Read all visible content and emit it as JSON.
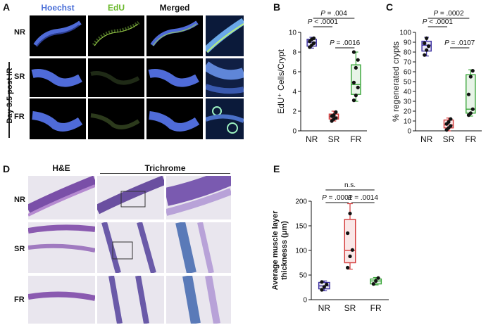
{
  "panelA": {
    "letter": "A",
    "columns": [
      {
        "label": "Hoechst",
        "color": "#4a6fd8"
      },
      {
        "label": "EdU",
        "color": "#6ab82a"
      },
      {
        "label": "Merged",
        "color": "#111111"
      }
    ],
    "rows": [
      "NR",
      "SR",
      "FR"
    ],
    "side_label": "Day 3.5 post IR"
  },
  "panelB": {
    "letter": "B",
    "chart_data": {
      "type": "box",
      "categories": [
        "NR",
        "SR",
        "FR"
      ],
      "ylabel": "EdU⁺ Cells/Crypt",
      "ylim": [
        0,
        10
      ],
      "yticks": [
        0,
        2,
        4,
        6,
        8,
        10
      ],
      "colors": [
        "#3b2fa0",
        "#d43b3b",
        "#3aa63a"
      ],
      "boxes": [
        {
          "min": 8.4,
          "q1": 8.6,
          "median": 9.0,
          "q3": 9.3,
          "max": 9.5
        },
        {
          "min": 1.0,
          "q1": 1.2,
          "median": 1.4,
          "q3": 1.7,
          "max": 2.0
        },
        {
          "min": 3.0,
          "q1": 3.7,
          "median": 4.7,
          "q3": 6.7,
          "max": 8.0
        }
      ],
      "points": [
        [
          8.5,
          8.7,
          8.9,
          9.1,
          9.3,
          9.4
        ],
        [
          1.0,
          1.2,
          1.3,
          1.5,
          1.6,
          1.9
        ],
        [
          3.1,
          3.6,
          4.4,
          4.9,
          6.4,
          7.2,
          8.0
        ]
      ],
      "annotations": [
        "P = .004",
        "P < .0001",
        "P = .0016"
      ]
    }
  },
  "panelC": {
    "letter": "C",
    "chart_data": {
      "type": "box",
      "categories": [
        "NR",
        "SR",
        "FR"
      ],
      "ylabel": "% regenerated crypts",
      "ylim": [
        0,
        100
      ],
      "yticks": [
        0,
        10,
        20,
        30,
        40,
        50,
        60,
        70,
        80,
        90,
        100
      ],
      "colors": [
        "#3b2fa0",
        "#d43b3b",
        "#3aa63a"
      ],
      "boxes": [
        {
          "min": 76,
          "q1": 81,
          "median": 87,
          "q3": 91,
          "max": 95
        },
        {
          "min": 0,
          "q1": 3,
          "median": 6,
          "q3": 11,
          "max": 13
        },
        {
          "min": 15,
          "q1": 18,
          "median": 22,
          "q3": 57,
          "max": 62
        }
      ],
      "points": [
        [
          77,
          82,
          86,
          89,
          94
        ],
        [
          1,
          3,
          5,
          7,
          9,
          12
        ],
        [
          16,
          18,
          22,
          37,
          55,
          61
        ]
      ],
      "annotations": [
        "P = .0002",
        "P < .0001",
        "P = .0107"
      ]
    }
  },
  "panelD": {
    "letter": "D",
    "columns": [
      "H&E",
      "Trichrome"
    ],
    "rows": [
      "NR",
      "SR",
      "FR"
    ]
  },
  "panelE": {
    "letter": "E",
    "chart_data": {
      "type": "box",
      "categories": [
        "NR",
        "SR",
        "FR"
      ],
      "ylabel": "Average muscle layer thicknesss (μm)",
      "ylim": [
        0,
        200
      ],
      "yticks": [
        0,
        50,
        100,
        150,
        200
      ],
      "colors": [
        "#3b2fa0",
        "#d43b3b",
        "#3aa63a"
      ],
      "boxes": [
        {
          "min": 18,
          "q1": 22,
          "median": 28,
          "q3": 35,
          "max": 38
        },
        {
          "min": 62,
          "q1": 75,
          "median": 100,
          "q3": 163,
          "max": 195
        },
        {
          "min": 30,
          "q1": 32,
          "median": 38,
          "q3": 42,
          "max": 45
        }
      ],
      "points": [
        [
          20,
          26,
          31,
          36
        ],
        [
          65,
          88,
          101,
          135,
          175
        ],
        [
          32,
          38,
          44
        ]
      ],
      "annotations": [
        "n.s.",
        "P = .0001",
        "P = .0014"
      ]
    }
  }
}
